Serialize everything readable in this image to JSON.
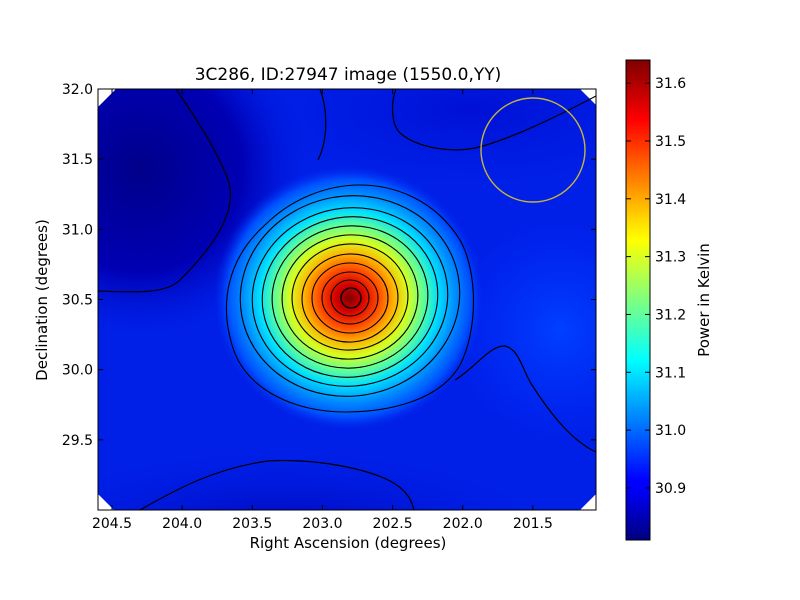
{
  "chart_data": {
    "type": "heatmap",
    "title": "3C286, ID:27947 image (1550.0,YY)",
    "xlabel": "Right Ascension (degrees)",
    "ylabel": "Declination (degrees)",
    "xlim": [
      204.6,
      201.05
    ],
    "ylim": [
      29.0,
      32.0
    ],
    "x_reversed": true,
    "x_ticks": [
      "204.5",
      "204.0",
      "203.5",
      "203.0",
      "202.5",
      "202.0",
      "201.5"
    ],
    "x_tick_values": [
      204.5,
      204.0,
      203.5,
      203.0,
      202.5,
      202.0,
      201.5
    ],
    "y_ticks": [
      "29.5",
      "30.0",
      "30.5",
      "31.0",
      "31.5",
      "32.0"
    ],
    "y_tick_values": [
      29.5,
      30.0,
      30.5,
      31.0,
      31.5,
      32.0
    ],
    "colorbar": {
      "label": "Power in Kelvin",
      "colormap": "jet",
      "range": [
        30.81,
        31.64
      ],
      "ticks": [
        "30.9",
        "31.0",
        "31.1",
        "31.2",
        "31.3",
        "31.4",
        "31.5",
        "31.6"
      ],
      "tick_values": [
        30.9,
        31.0,
        31.1,
        31.2,
        31.3,
        31.4,
        31.5,
        31.6
      ]
    },
    "source": {
      "ra": 202.78,
      "dec": 30.51,
      "peak_power": 31.64
    },
    "beam_circle": {
      "ra": 201.5,
      "dec": 31.56,
      "radius_deg": 0.37,
      "color": "#c8b43c"
    },
    "grid": false,
    "contours": true
  }
}
